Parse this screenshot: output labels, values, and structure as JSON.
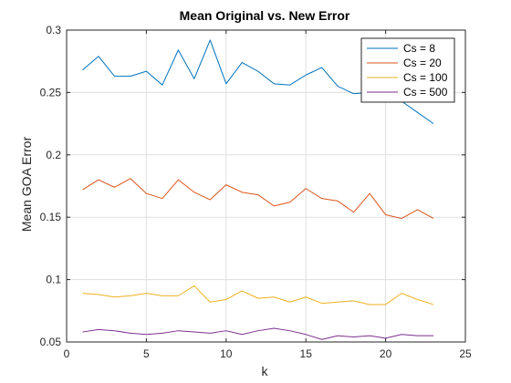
{
  "chart_data": {
    "type": "line",
    "title": "Mean Original vs. New Error",
    "xlabel": "k",
    "ylabel": "Mean GOA Error",
    "xlim": [
      0,
      25
    ],
    "ylim": [
      0.05,
      0.3
    ],
    "xticks": [
      0,
      5,
      10,
      15,
      20,
      25
    ],
    "yticks": [
      0.05,
      0.1,
      0.15,
      0.2,
      0.25,
      0.3
    ],
    "xtick_labels": [
      "0",
      "5",
      "10",
      "15",
      "20",
      "25"
    ],
    "ytick_labels": [
      "0.05",
      "0.1",
      "0.15",
      "0.2",
      "0.25",
      "0.3"
    ],
    "grid": true,
    "legend_position": "top-right",
    "x": [
      1,
      2,
      3,
      4,
      5,
      6,
      7,
      8,
      9,
      10,
      11,
      12,
      13,
      14,
      15,
      16,
      17,
      18,
      19,
      20,
      21,
      22,
      23
    ],
    "series": [
      {
        "name": "Cs = 8",
        "color": "#0072BD",
        "values": [
          0.268,
          0.279,
          0.263,
          0.263,
          0.267,
          0.256,
          0.284,
          0.261,
          0.292,
          0.257,
          0.274,
          0.267,
          0.257,
          0.256,
          0.264,
          0.27,
          0.255,
          0.249,
          0.25,
          0.252,
          0.243,
          0.234,
          0.225
        ]
      },
      {
        "name": "Cs = 20",
        "color": "#D95319",
        "values": [
          0.172,
          0.18,
          0.174,
          0.181,
          0.169,
          0.165,
          0.18,
          0.17,
          0.164,
          0.176,
          0.17,
          0.168,
          0.159,
          0.162,
          0.173,
          0.165,
          0.163,
          0.154,
          0.169,
          0.152,
          0.149,
          0.156,
          0.149
        ]
      },
      {
        "name": "Cs = 100",
        "color": "#EDB120",
        "values": [
          0.089,
          0.088,
          0.086,
          0.087,
          0.089,
          0.087,
          0.087,
          0.095,
          0.082,
          0.084,
          0.091,
          0.085,
          0.086,
          0.082,
          0.086,
          0.081,
          0.082,
          0.083,
          0.08,
          0.08,
          0.089,
          0.084,
          0.08
        ]
      },
      {
        "name": "Cs = 500",
        "color": "#7E2F8E",
        "values": [
          0.058,
          0.06,
          0.059,
          0.057,
          0.056,
          0.057,
          0.059,
          0.058,
          0.057,
          0.059,
          0.056,
          0.059,
          0.061,
          0.059,
          0.056,
          0.052,
          0.055,
          0.054,
          0.055,
          0.053,
          0.056,
          0.055,
          0.055
        ]
      }
    ]
  }
}
